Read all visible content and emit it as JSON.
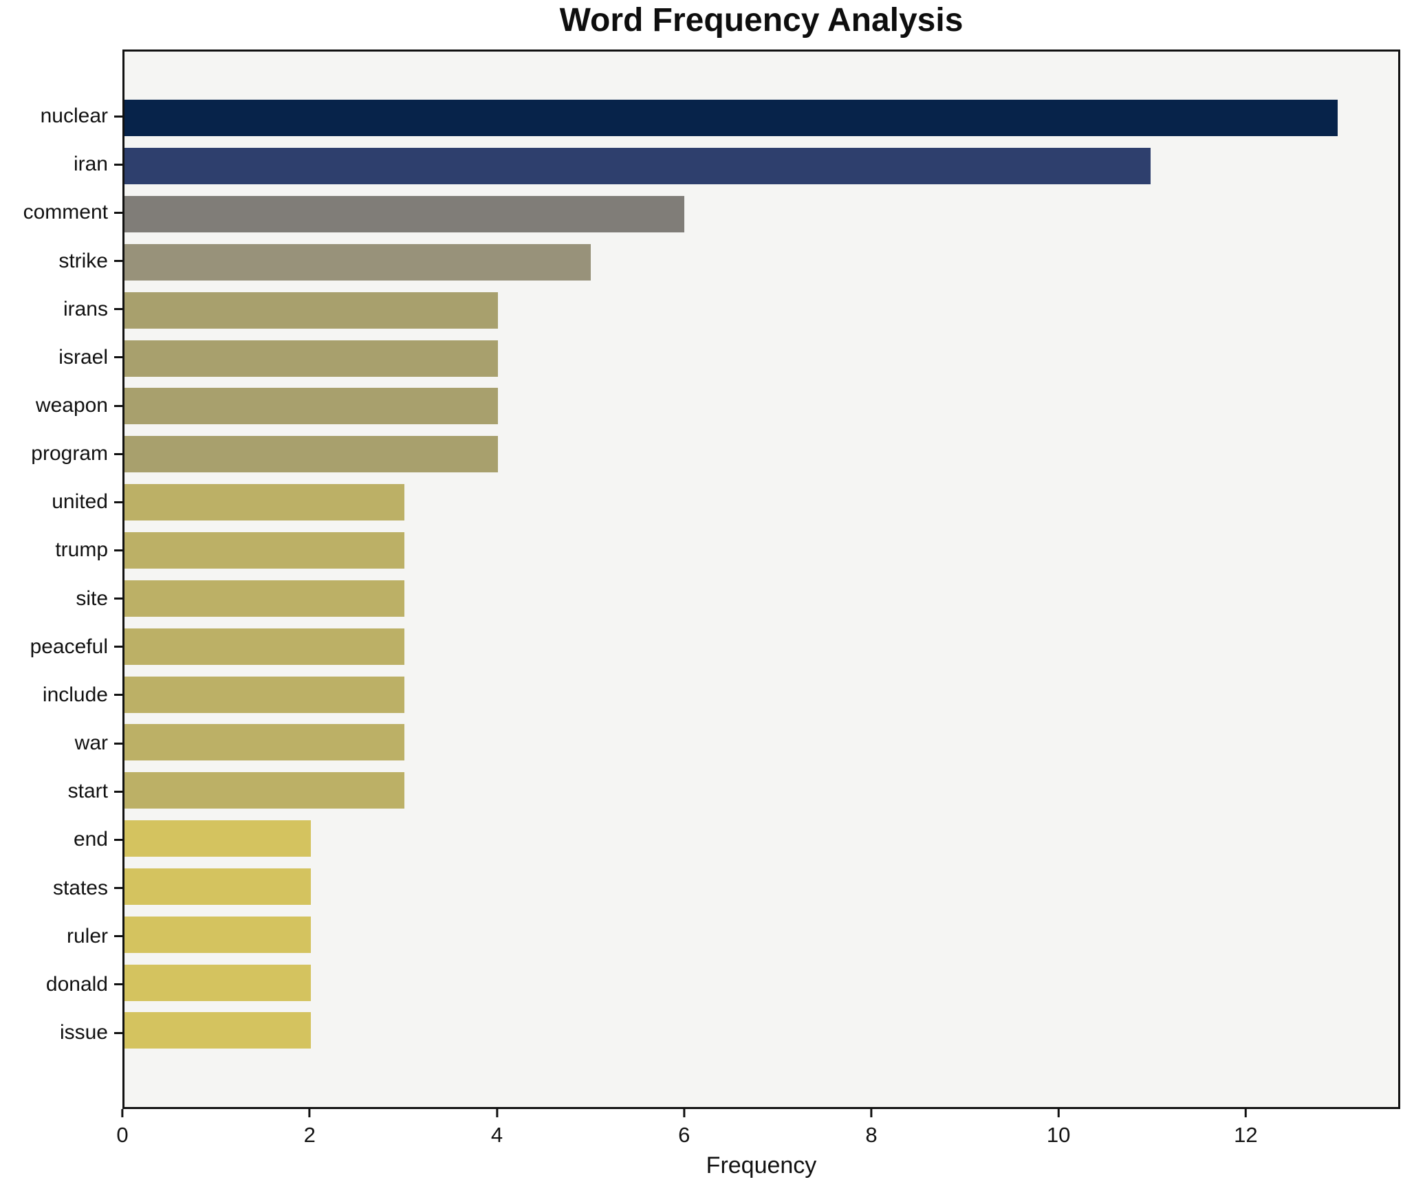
{
  "chart_data": {
    "type": "bar",
    "orientation": "horizontal",
    "title": "Word Frequency Analysis",
    "xlabel": "Frequency",
    "ylabel": "",
    "categories": [
      "nuclear",
      "iran",
      "comment",
      "strike",
      "irans",
      "israel",
      "weapon",
      "program",
      "united",
      "trump",
      "site",
      "peaceful",
      "include",
      "war",
      "start",
      "end",
      "states",
      "ruler",
      "donald",
      "issue"
    ],
    "values": [
      13,
      11,
      6,
      5,
      4,
      4,
      4,
      4,
      3,
      3,
      3,
      3,
      3,
      3,
      3,
      2,
      2,
      2,
      2,
      2
    ],
    "bar_colors": [
      "#07234a",
      "#2e3f6d",
      "#807d78",
      "#98927a",
      "#a8a06d",
      "#a8a06d",
      "#a8a06d",
      "#a8a06d",
      "#bcb066",
      "#bcb066",
      "#bcb066",
      "#bcb066",
      "#bcb066",
      "#bcb066",
      "#bcb066",
      "#d4c35f",
      "#d4c35f",
      "#d4c35f",
      "#d4c35f",
      "#d4c35f"
    ],
    "x_ticks": [
      0,
      2,
      4,
      6,
      8,
      10,
      12
    ],
    "xlim": [
      0,
      13.65
    ],
    "grid": false,
    "legend_position": "none",
    "plot_background": "#f5f5f3",
    "figure_background": "#ffffff",
    "spine_color": "#111111",
    "text_color": "#111111"
  }
}
